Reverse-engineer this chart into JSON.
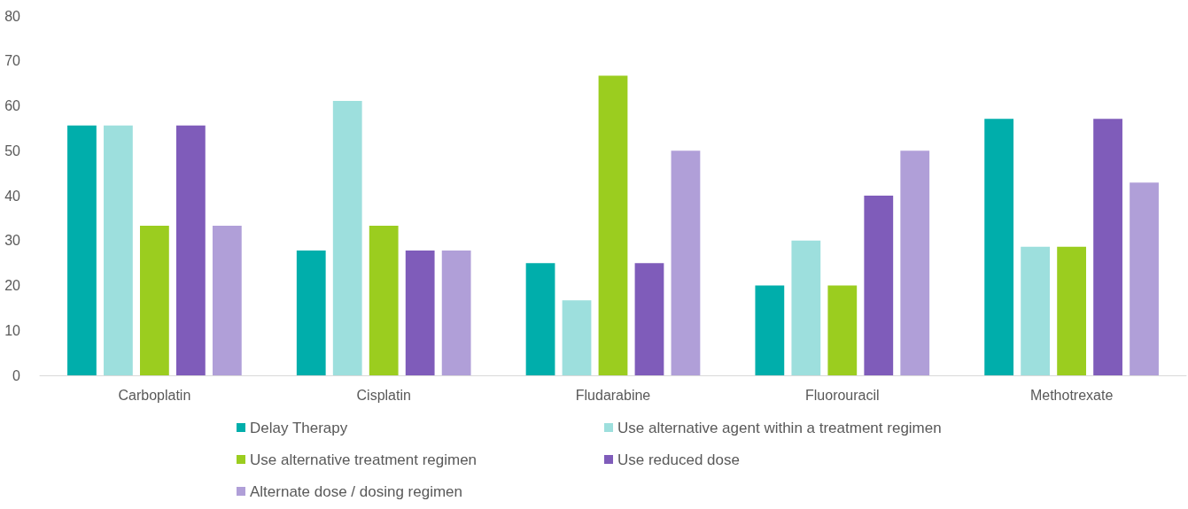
{
  "chart_data": {
    "type": "bar",
    "categories": [
      "Carboplatin",
      "Cisplatin",
      "Fludarabine",
      "Fluorouracil",
      "Methotrexate"
    ],
    "series": [
      {
        "name": "Delay Therapy",
        "color": "#00aeab",
        "values": [
          55.6,
          27.8,
          25,
          20,
          57.1
        ]
      },
      {
        "name": "Use alternative agent within a treatment regimen",
        "color": "#9ddfdd",
        "values": [
          55.6,
          61.1,
          16.7,
          30,
          28.6
        ]
      },
      {
        "name": "Use alternative treatment regimen",
        "color": "#9bcd1f",
        "values": [
          33.3,
          33.3,
          66.7,
          20,
          28.6
        ]
      },
      {
        "name": "Use reduced dose",
        "color": "#7f5cba",
        "values": [
          55.6,
          27.8,
          25,
          40,
          57.1
        ]
      },
      {
        "name": "Alternate dose / dosing regimen",
        "color": "#b09fd8",
        "values": [
          33.3,
          27.8,
          50,
          50,
          42.9
        ]
      }
    ],
    "ylim": [
      0,
      80
    ],
    "yticks": [
      0,
      10,
      20,
      30,
      40,
      50,
      60,
      70,
      80
    ],
    "grid": false,
    "legend": "bottom"
  }
}
